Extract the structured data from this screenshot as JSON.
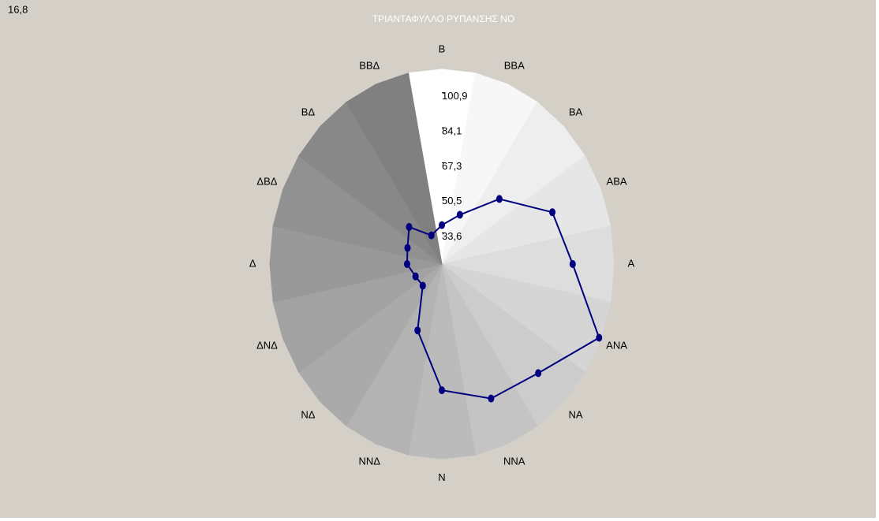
{
  "chart_data": {
    "type": "radar",
    "title": "ΤΡΙΑΝΤΑΦΥΛΛΟ ΡΥΠΑΝΣΗΣ NO",
    "corner_label": "16,8",
    "categories": [
      "B",
      "BBA",
      "BA",
      "ABA",
      "A",
      "ANA",
      "NA",
      "NNA",
      "N",
      "NNΔ",
      "NΔ",
      "ΔNΔ",
      "Δ",
      "ΔBΔ",
      "BΔ",
      "BBΔ"
    ],
    "series": [
      {
        "name": "NO",
        "color": "#000080",
        "values": [
          39.2,
          46.1,
          64.7,
          85.5,
          91.6,
          113,
          94.6,
          90.4,
          81.1,
          55.0,
          35.2,
          36.0,
          39.4,
          40.7,
          45.7,
          35.4
        ]
      }
    ],
    "rlim": [
      20.5,
      114
    ],
    "rticks": [
      {
        "value": 33.6,
        "label": "33,6"
      },
      {
        "value": 50.5,
        "label": "50,5"
      },
      {
        "value": 67.3,
        "label": "67,3"
      },
      {
        "value": 84.1,
        "label": "84,1"
      },
      {
        "value": 100.9,
        "label": "100,9"
      }
    ]
  }
}
